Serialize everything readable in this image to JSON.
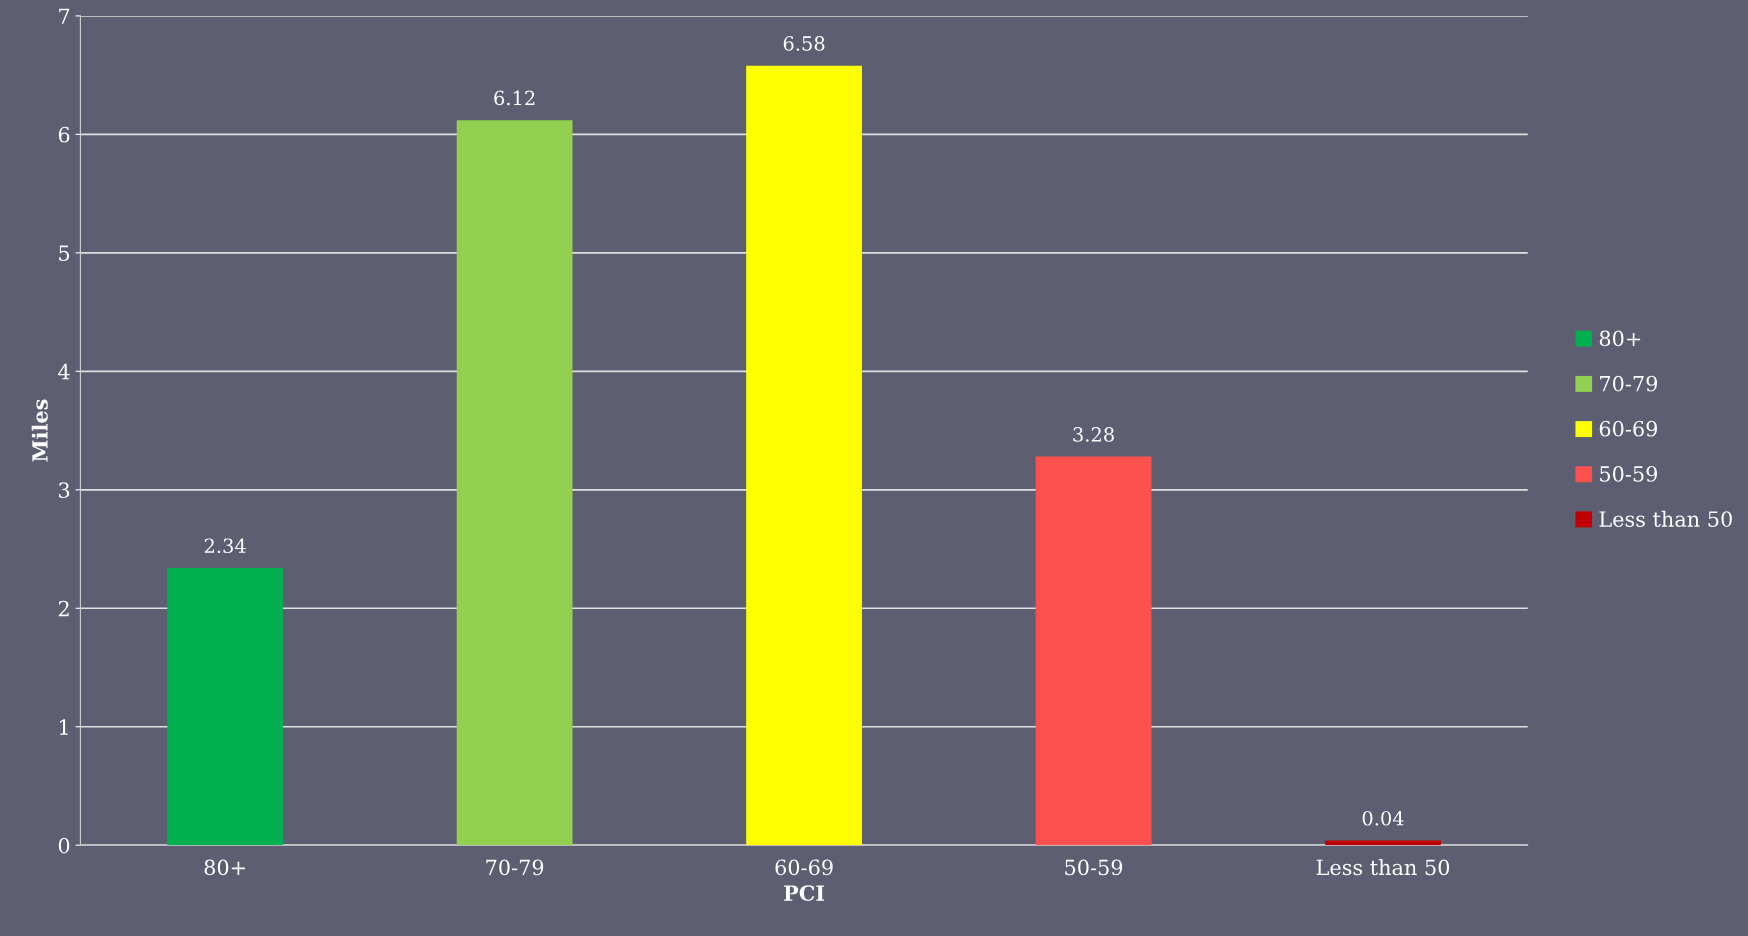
{
  "chart_data": {
    "type": "bar",
    "xlabel": "PCI",
    "ylabel": "Miles",
    "categories": [
      "80+",
      "70-79",
      "60-69",
      "50-59",
      "Less than 50"
    ],
    "series": [
      {
        "name": "80+",
        "color": "#00b050",
        "values": [
          2.34,
          null,
          null,
          null,
          null
        ]
      },
      {
        "name": "70-79",
        "color": "#92d050",
        "values": [
          null,
          6.12,
          null,
          null,
          null
        ]
      },
      {
        "name": "60-69",
        "color": "#ffff00",
        "values": [
          null,
          null,
          6.58,
          null,
          null
        ]
      },
      {
        "name": "50-59",
        "color": "#ff5050",
        "values": [
          null,
          null,
          null,
          3.28,
          null
        ]
      },
      {
        "name": "Less than 50",
        "color": "#c00000",
        "values": [
          null,
          null,
          null,
          null,
          0.04
        ]
      }
    ],
    "ylim": [
      0,
      7
    ],
    "yticks": [
      0,
      1,
      2,
      3,
      4,
      5,
      6,
      7
    ],
    "grid": "y",
    "legend": "right",
    "data_labels": true
  }
}
